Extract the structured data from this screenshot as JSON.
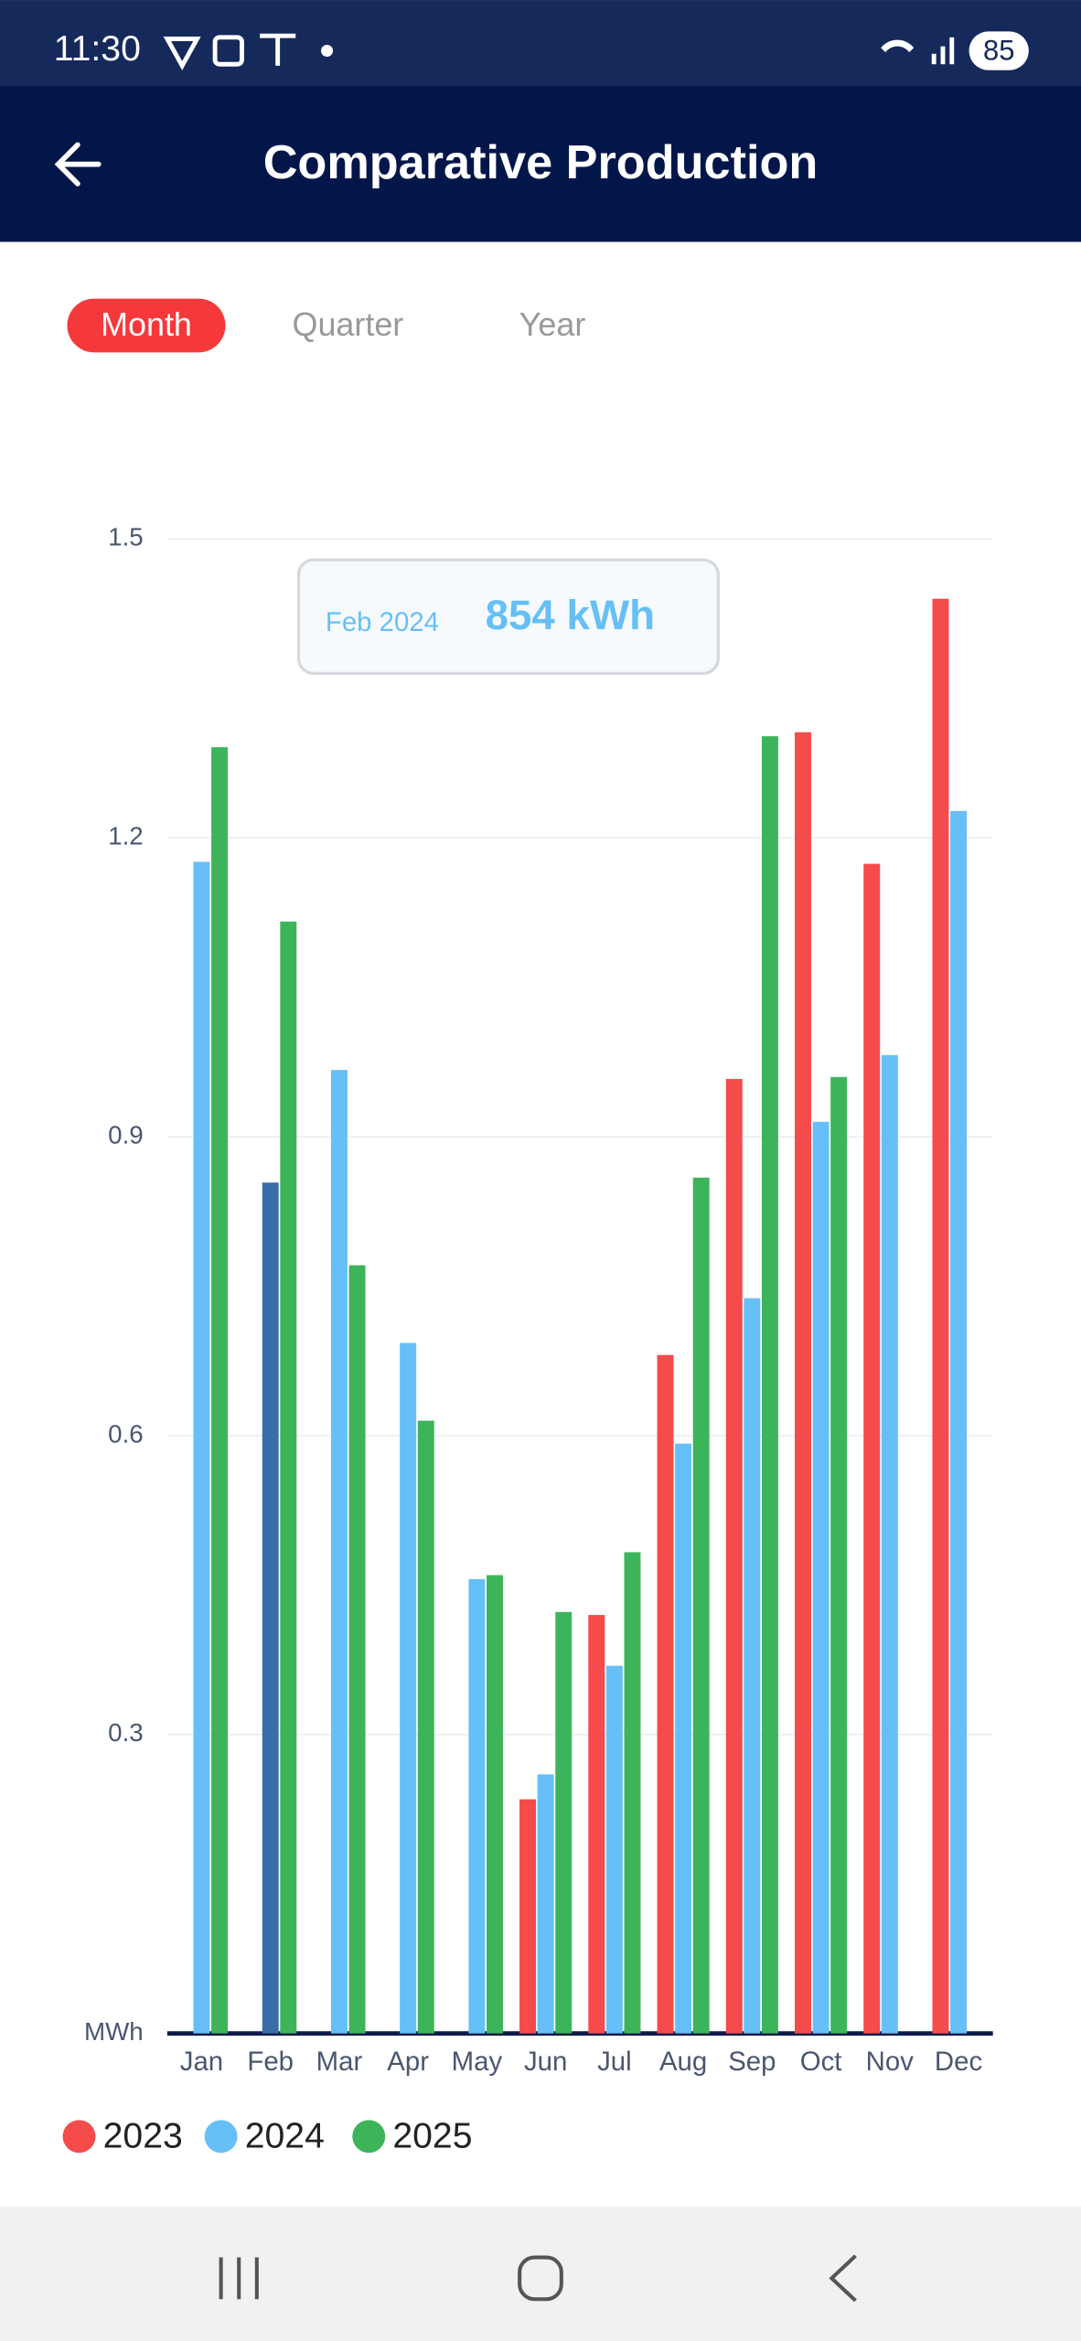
{
  "status_bar": {
    "time": "11:30",
    "battery": "85"
  },
  "header": {
    "title": "Comparative Production"
  },
  "tabs": [
    "Month",
    "Quarter",
    "Year"
  ],
  "chart_data": {
    "type": "bar",
    "categories": [
      "Jan",
      "Feb",
      "Mar",
      "Apr",
      "May",
      "Jun",
      "Jul",
      "Aug",
      "Sep",
      "Oct",
      "Nov",
      "Dec"
    ],
    "series": [
      {
        "name": "2023",
        "color": "#f54b4b",
        "values": [
          null,
          null,
          null,
          null,
          null,
          0.235,
          0.42,
          0.681,
          0.958,
          1.306,
          1.174,
          1.44
        ]
      },
      {
        "name": "2024",
        "color": "#66bff6",
        "values": [
          1.176,
          0.854,
          0.967,
          0.693,
          0.456,
          0.26,
          0.369,
          0.592,
          0.738,
          0.915,
          0.982,
          1.227
        ]
      },
      {
        "name": "2025",
        "color": "#3db45a",
        "values": [
          1.291,
          1.116,
          0.771,
          0.615,
          0.46,
          0.423,
          0.483,
          0.859,
          1.302,
          0.96,
          null,
          null
        ]
      }
    ],
    "ylim": [
      0,
      1.5
    ],
    "yticks": [
      {
        "value": 0,
        "label": "MWh"
      },
      0.3,
      0.6,
      0.9,
      1.2,
      1.5
    ],
    "grid": true,
    "highlight": {
      "series": 1,
      "index": 1,
      "color": "#3a6ea6"
    },
    "tooltip": {
      "label": "Feb 2024",
      "value_label": "854 kWh"
    },
    "legend": "bottom-left"
  }
}
